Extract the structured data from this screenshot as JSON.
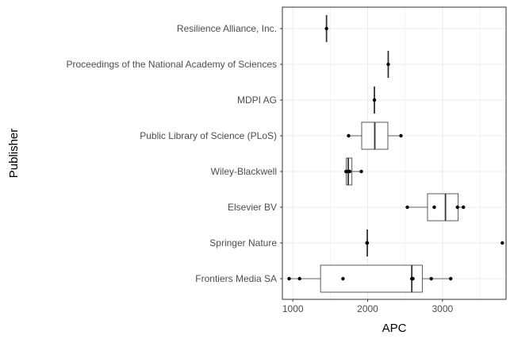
{
  "chart_data": {
    "type": "boxplot",
    "orientation": "horizontal",
    "xlabel": "APC",
    "ylabel": "Publisher",
    "xlim": [
      860,
      3850
    ],
    "xticks": [
      1000,
      2000,
      3000
    ],
    "grid": true,
    "theme": "bw",
    "categories": [
      "Resilience Alliance, Inc.",
      "Proceedings of the National Academy of Sciences",
      "MDPI AG",
      "Public Library of Science (PLoS)",
      "Wiley-Blackwell",
      "Elsevier BV",
      "Springer Nature",
      "Frontiers Media SA"
    ],
    "series": [
      {
        "category": "Resilience Alliance, Inc.",
        "min": 1450,
        "q1": 1450,
        "median": 1450,
        "q3": 1450,
        "max": 1450,
        "points": [
          1450
        ]
      },
      {
        "category": "Proceedings of the National Academy of Sciences",
        "min": 2275,
        "q1": 2275,
        "median": 2275,
        "q3": 2275,
        "max": 2275,
        "points": [
          2275
        ]
      },
      {
        "category": "MDPI AG",
        "min": 2090,
        "q1": 2090,
        "median": 2090,
        "q3": 2090,
        "max": 2090,
        "points": [
          2090
        ]
      },
      {
        "category": "Public Library of Science (PLoS)",
        "min": 1745,
        "q1": 1920,
        "median": 2095,
        "q3": 2270,
        "max": 2445,
        "points": [
          1745,
          2445
        ]
      },
      {
        "category": "Wiley-Blackwell",
        "min": 1710,
        "q1": 1715,
        "median": 1740,
        "q3": 1790,
        "max": 1915,
        "points": [
          1710,
          1720,
          1760,
          1915
        ]
      },
      {
        "category": "Elsevier BV",
        "min": 2530,
        "q1": 2800,
        "median": 3040,
        "q3": 3210,
        "max": 3280,
        "points": [
          2530,
          2890,
          3200,
          3280
        ]
      },
      {
        "category": "Springer Nature",
        "min": 1995,
        "q1": 1995,
        "median": 1995,
        "q3": 1995,
        "max": 1995,
        "points": [
          1990,
          1995,
          3800
        ]
      },
      {
        "category": "Frontiers Media SA",
        "min": 950,
        "q1": 1370,
        "median": 2590,
        "q3": 2730,
        "max": 3110,
        "points": [
          950,
          1090,
          1670,
          2590,
          2605,
          2850,
          3110
        ]
      }
    ]
  }
}
